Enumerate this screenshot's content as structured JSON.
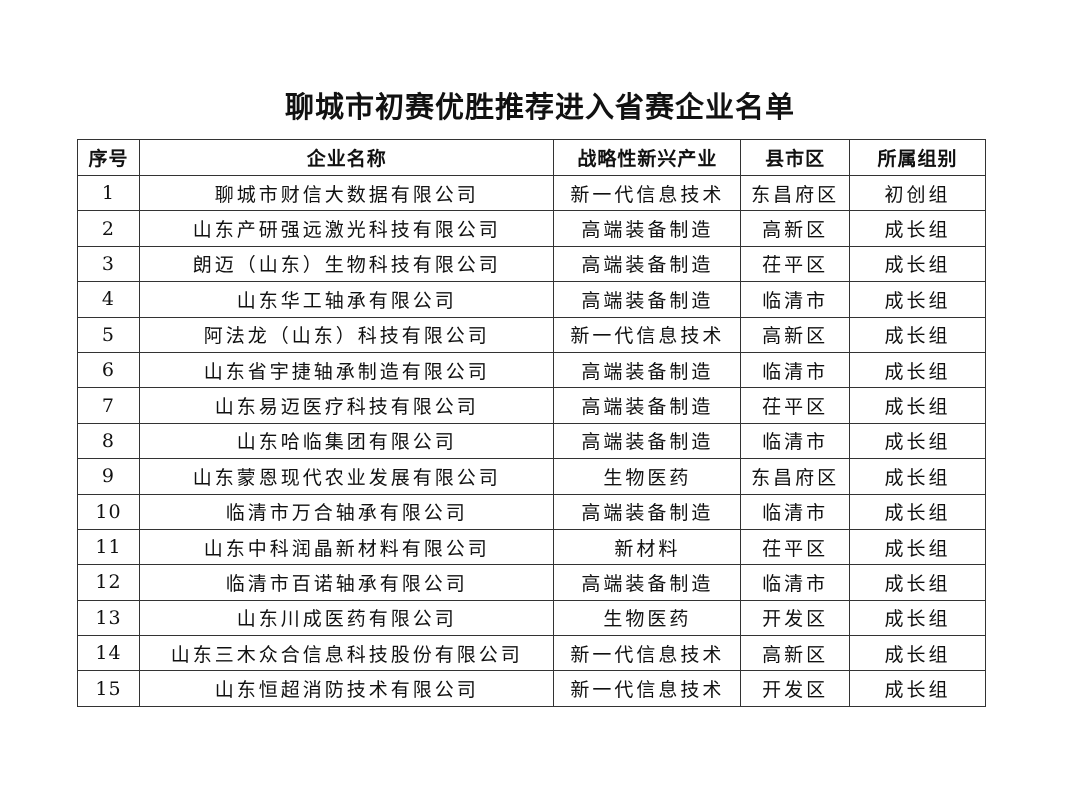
{
  "title": "聊城市初赛优胜推荐进入省赛企业名单",
  "headers": [
    "序号",
    "企业名称",
    "战略性新兴产业",
    "县市区",
    "所属组别"
  ],
  "rows": [
    [
      "1",
      "聊城市财信大数据有限公司",
      "新一代信息技术",
      "东昌府区",
      "初创组"
    ],
    [
      "2",
      "山东产研强远激光科技有限公司",
      "高端装备制造",
      "高新区",
      "成长组"
    ],
    [
      "3",
      "朗迈（山东）生物科技有限公司",
      "高端装备制造",
      "茌平区",
      "成长组"
    ],
    [
      "4",
      "山东华工轴承有限公司",
      "高端装备制造",
      "临清市",
      "成长组"
    ],
    [
      "5",
      "阿法龙（山东）科技有限公司",
      "新一代信息技术",
      "高新区",
      "成长组"
    ],
    [
      "6",
      "山东省宇捷轴承制造有限公司",
      "高端装备制造",
      "临清市",
      "成长组"
    ],
    [
      "7",
      "山东易迈医疗科技有限公司",
      "高端装备制造",
      "茌平区",
      "成长组"
    ],
    [
      "8",
      "山东哈临集团有限公司",
      "高端装备制造",
      "临清市",
      "成长组"
    ],
    [
      "9",
      "山东蒙恩现代农业发展有限公司",
      "生物医药",
      "东昌府区",
      "成长组"
    ],
    [
      "10",
      "临清市万合轴承有限公司",
      "高端装备制造",
      "临清市",
      "成长组"
    ],
    [
      "11",
      "山东中科润晶新材料有限公司",
      "新材料",
      "茌平区",
      "成长组"
    ],
    [
      "12",
      "临清市百诺轴承有限公司",
      "高端装备制造",
      "临清市",
      "成长组"
    ],
    [
      "13",
      "山东川成医药有限公司",
      "生物医药",
      "开发区",
      "成长组"
    ],
    [
      "14",
      "山东三木众合信息科技股份有限公司",
      "新一代信息技术",
      "高新区",
      "成长组"
    ],
    [
      "15",
      "山东恒超消防技术有限公司",
      "新一代信息技术",
      "开发区",
      "成长组"
    ]
  ]
}
